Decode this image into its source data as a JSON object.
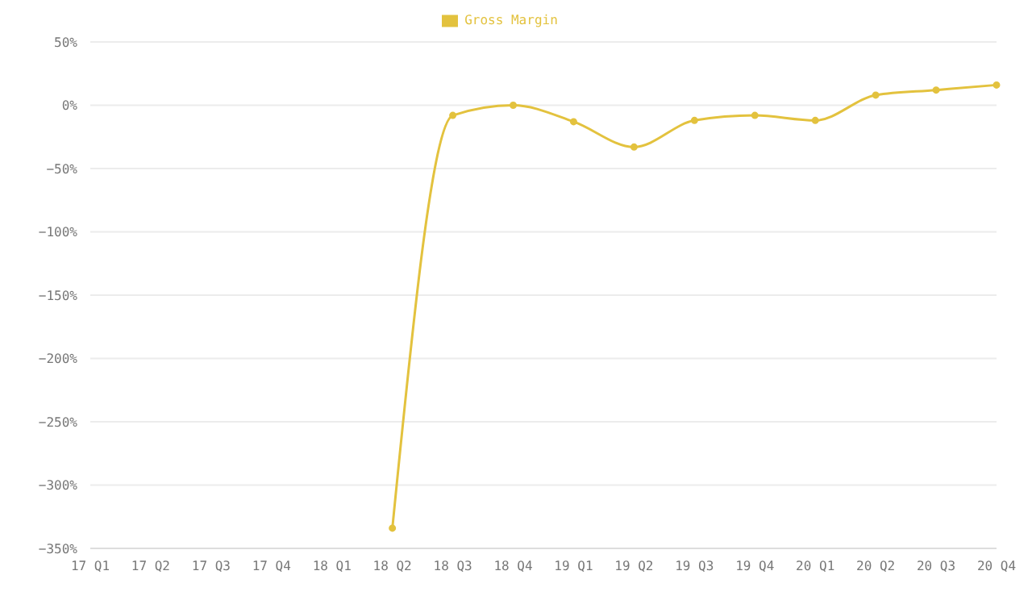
{
  "chart_data": {
    "type": "line",
    "categories": [
      "17 Q1",
      "17 Q2",
      "17 Q3",
      "17 Q4",
      "18 Q1",
      "18 Q2",
      "18 Q3",
      "18 Q4",
      "19 Q1",
      "19 Q2",
      "19 Q3",
      "19 Q4",
      "20 Q1",
      "20 Q2",
      "20 Q3",
      "20 Q4"
    ],
    "series": [
      {
        "name": "Gross Margin",
        "color": "#e3c23e",
        "values": [
          null,
          null,
          null,
          null,
          null,
          -334,
          -8,
          0,
          -13,
          -33,
          -12,
          -8,
          -12,
          8,
          12,
          16
        ]
      }
    ],
    "ylim": [
      -350,
      50
    ],
    "yticks": [
      {
        "value": 50,
        "label": "50%"
      },
      {
        "value": 0,
        "label": "0%"
      },
      {
        "value": -50,
        "label": "−50%"
      },
      {
        "value": -100,
        "label": "−100%"
      },
      {
        "value": -150,
        "label": "−150%"
      },
      {
        "value": -200,
        "label": "−200%"
      },
      {
        "value": -250,
        "label": "−250%"
      },
      {
        "value": -300,
        "label": "−300%"
      },
      {
        "value": -350,
        "label": "−350%"
      }
    ],
    "grid": "y",
    "legend": "top",
    "marker": "circle",
    "line_style": "solid"
  }
}
